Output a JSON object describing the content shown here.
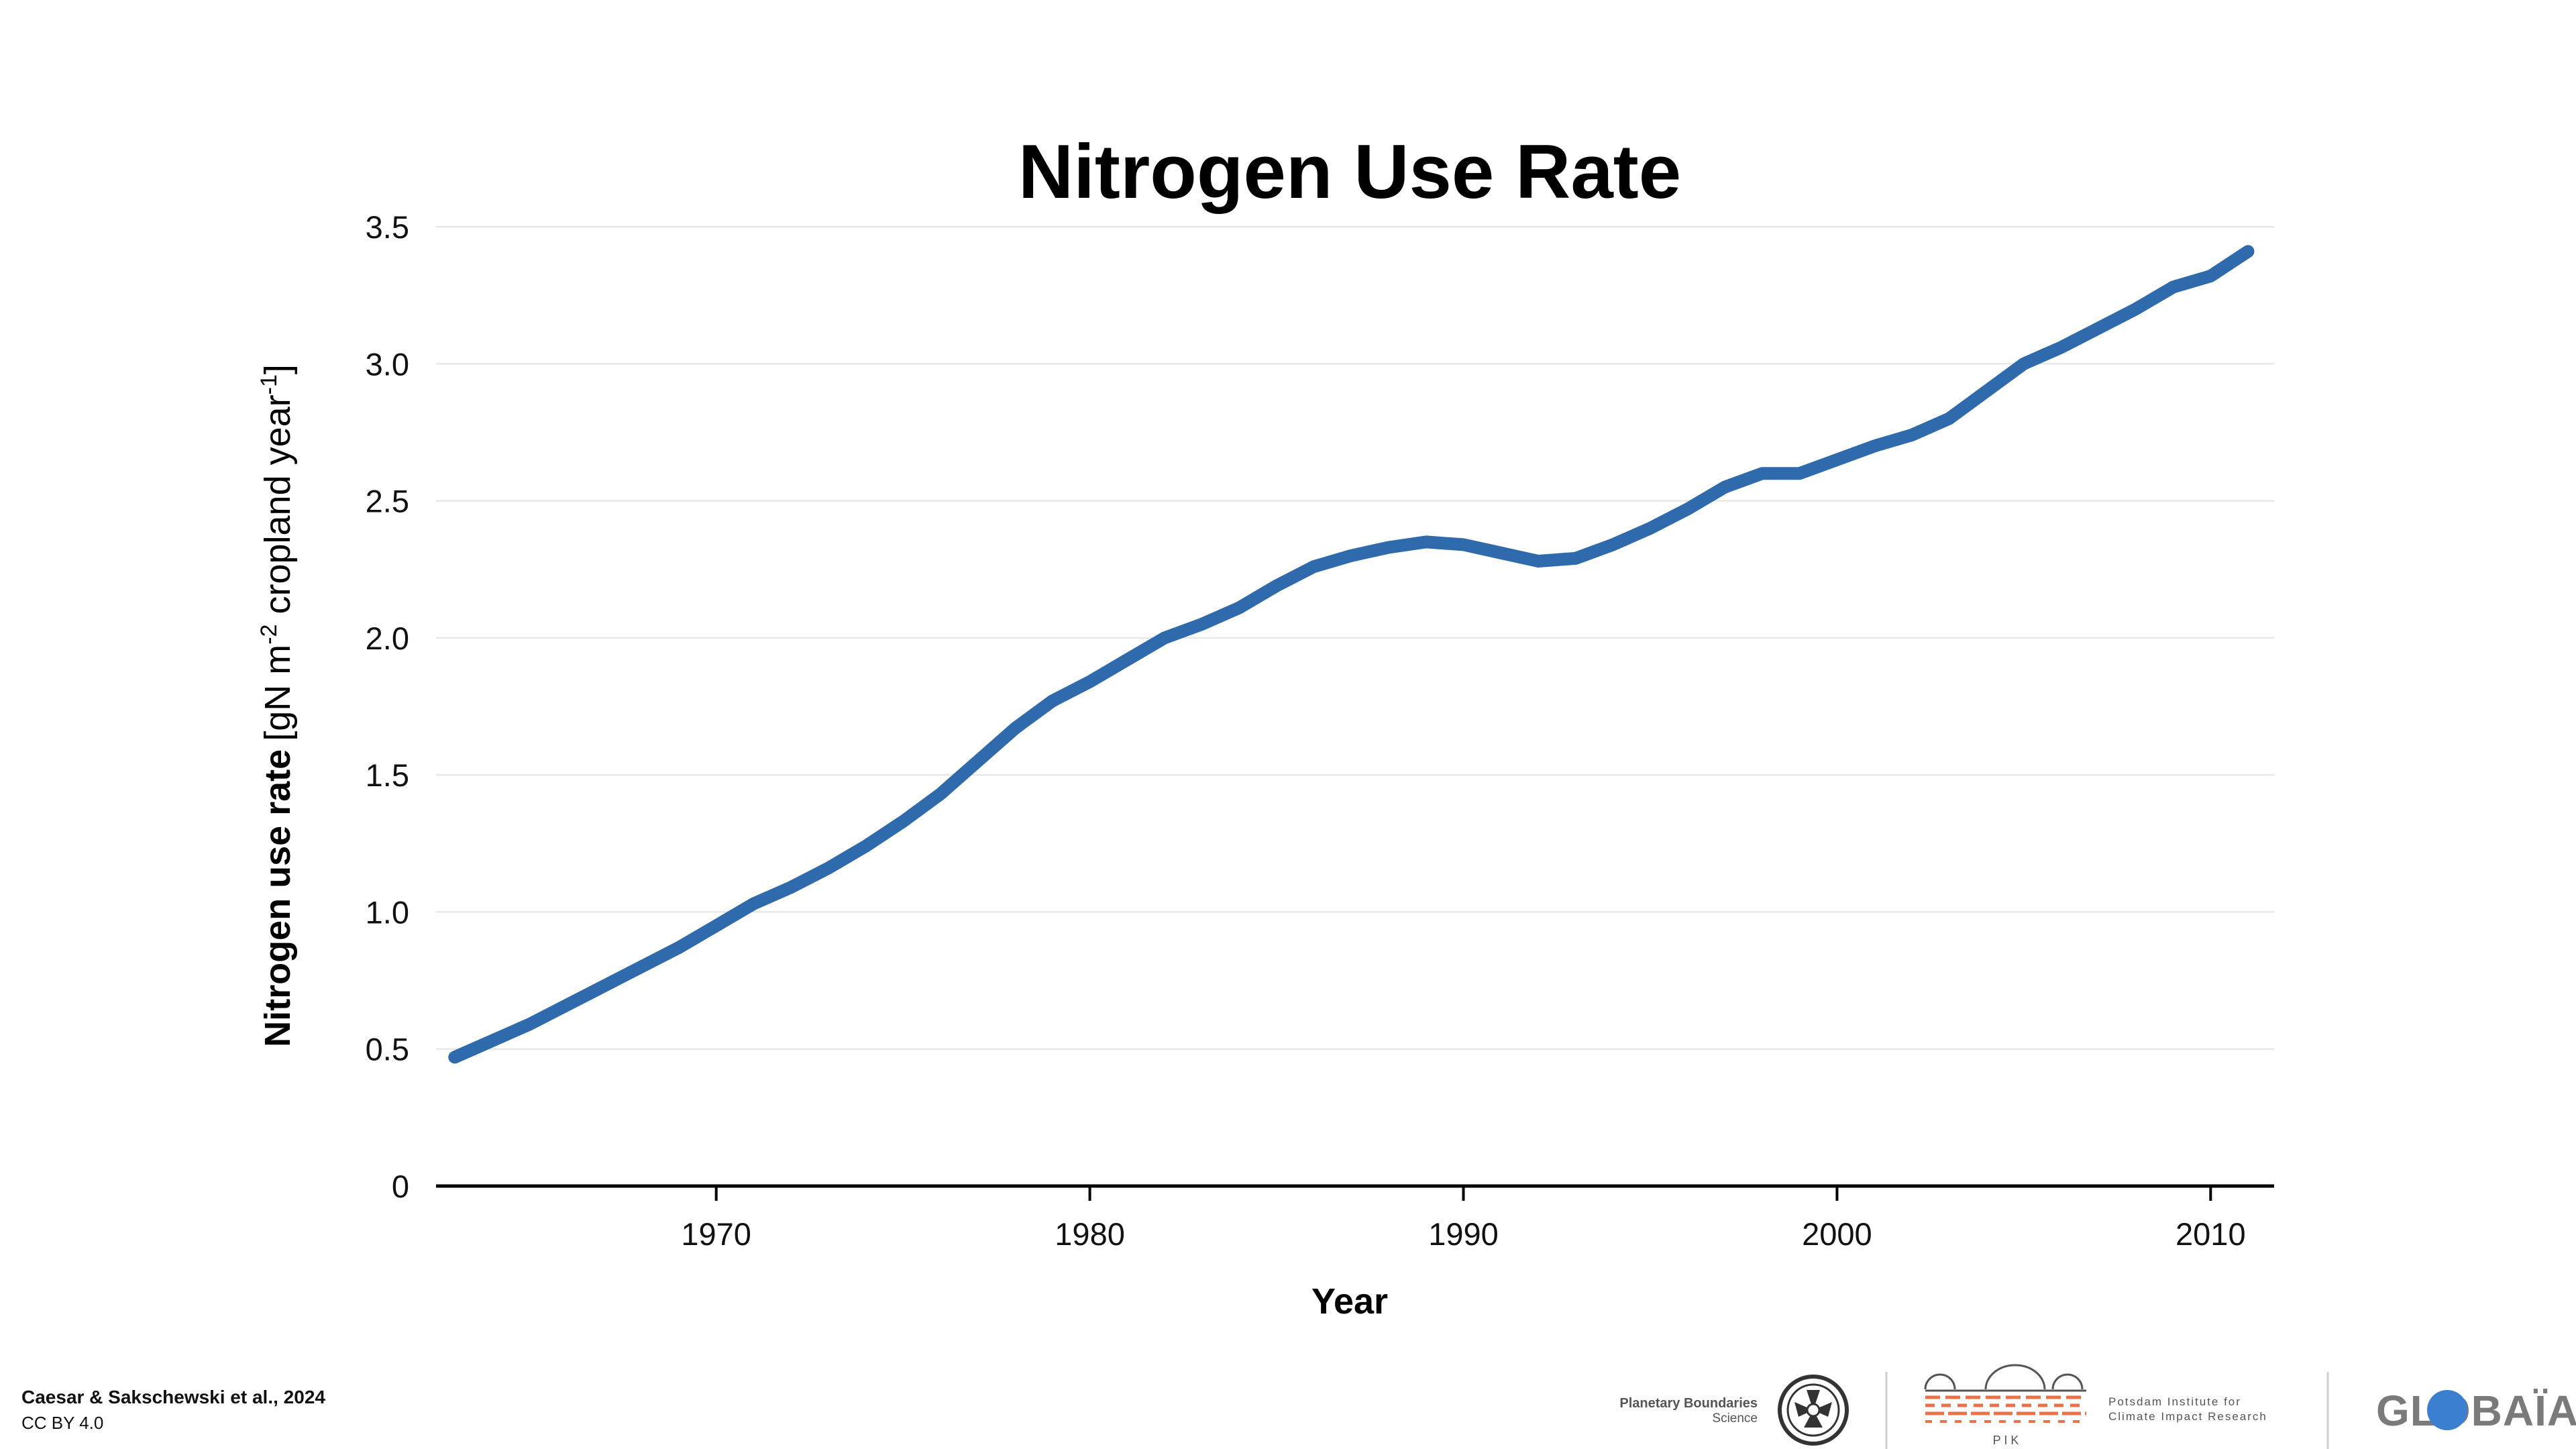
{
  "chart_data": {
    "type": "line",
    "title": "Nitrogen Use Rate",
    "xlabel": "Year",
    "ylabel": {
      "bold": "Nitrogen use rate",
      "unit_prefix": "[gN m",
      "sup1": "-2",
      "unit_mid": " cropland year",
      "sup2": "-1",
      "unit_suffix": "]"
    },
    "xlim": [
      1962.5,
      2011.7
    ],
    "ylim": [
      0,
      3.5
    ],
    "x_ticks": [
      1970,
      1980,
      1990,
      2000,
      2010
    ],
    "x_tick_labels": [
      "1970",
      "1980",
      "1990",
      "2000",
      "2010"
    ],
    "y_ticks": [
      0,
      0.5,
      1.0,
      1.5,
      2.0,
      2.5,
      3.0,
      3.5
    ],
    "y_tick_labels": [
      "0",
      "0.5",
      "1.0",
      "1.5",
      "2.0",
      "2.5",
      "3.0",
      "3.5"
    ],
    "grid": true,
    "line_color": "#2f6aad",
    "series": [
      {
        "x": [
          1963,
          1964,
          1965,
          1966,
          1967,
          1968,
          1969,
          1970,
          1971,
          1972,
          1973,
          1974,
          1975,
          1976,
          1977,
          1978,
          1979,
          1980,
          1981,
          1982,
          1983,
          1984,
          1985,
          1986,
          1987,
          1988,
          1989,
          1990,
          1991,
          1992,
          1993,
          1994,
          1995,
          1996,
          1997,
          1998,
          1999,
          2000,
          2001,
          2002,
          2003,
          2004,
          2005,
          2006,
          2007,
          2008,
          2009,
          2010,
          2011
        ],
        "y": [
          0.47,
          0.53,
          0.59,
          0.66,
          0.73,
          0.8,
          0.87,
          0.95,
          1.03,
          1.09,
          1.16,
          1.24,
          1.33,
          1.43,
          1.55,
          1.67,
          1.77,
          1.84,
          1.92,
          2.0,
          2.05,
          2.11,
          2.19,
          2.26,
          2.3,
          2.33,
          2.35,
          2.34,
          2.31,
          2.28,
          2.29,
          2.34,
          2.4,
          2.47,
          2.55,
          2.6,
          2.6,
          2.65,
          2.7,
          2.74,
          2.8,
          2.9,
          3.0,
          3.06,
          3.13,
          3.2,
          3.28,
          3.32,
          3.41
        ]
      }
    ]
  },
  "credits": {
    "citation": "Caesar & Sakschewski et al., 2024",
    "license": "CC BY 4.0"
  },
  "logos": {
    "pbs_line1": "Planetary Boundaries",
    "pbs_line2": "Science",
    "pik_letters": "P I K",
    "pik_line1": "Potsdam Institute for",
    "pik_line2": "Climate Impact Research",
    "globaia": "GLOBAÏA"
  }
}
